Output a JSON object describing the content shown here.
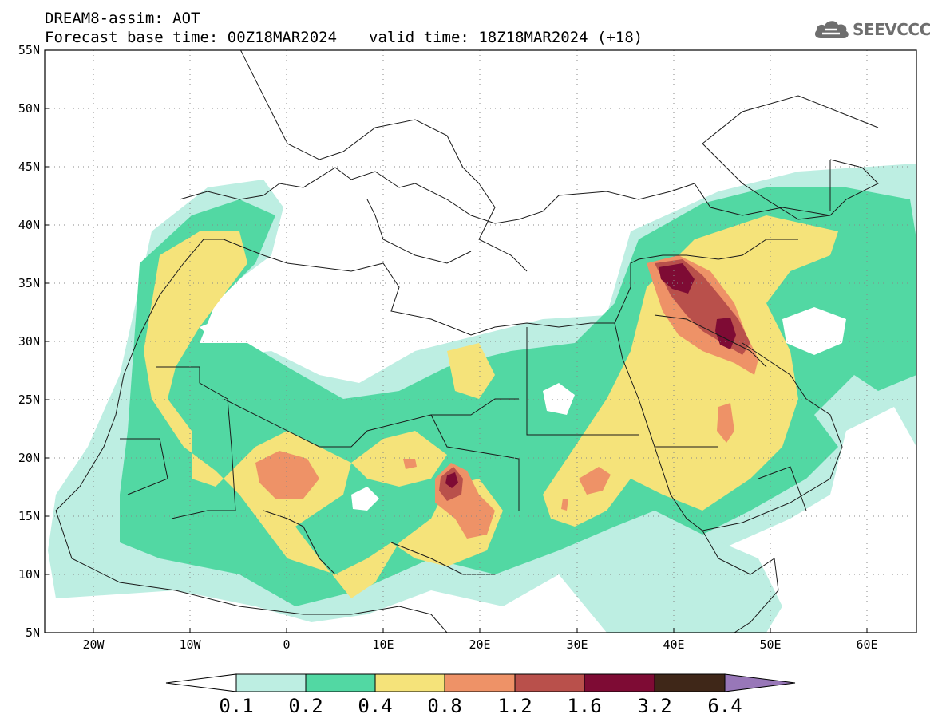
{
  "header": {
    "line1": "DREAM8-assim: AOT",
    "base_time": "Forecast base time: 00Z18MAR2024",
    "valid_time": "valid time: 18Z18MAR2024 (+18)"
  },
  "logo": {
    "text": "SEEVCCC",
    "icon": "cloud-logo-icon"
  },
  "map": {
    "lon_range": [
      -25,
      65
    ],
    "lat_range": [
      5,
      55
    ],
    "lat_ticks": [
      "55N",
      "50N",
      "45N",
      "40N",
      "35N",
      "30N",
      "25N",
      "20N",
      "15N",
      "10N",
      "5N"
    ],
    "lat_values": [
      55,
      50,
      45,
      40,
      35,
      30,
      25,
      20,
      15,
      10,
      5
    ],
    "lon_ticks": [
      "20W",
      "10W",
      "0",
      "10E",
      "20E",
      "30E",
      "40E",
      "50E",
      "60E"
    ],
    "lon_values": [
      -20,
      -10,
      0,
      10,
      20,
      30,
      40,
      50,
      60
    ],
    "grid": "dotted"
  },
  "colorbar": {
    "labels": [
      "0.1",
      "0.2",
      "0.4",
      "0.8",
      "1.2",
      "1.6",
      "3.2",
      "6.4"
    ],
    "colors": [
      "#bdeee2",
      "#52d8a3",
      "#f5e37a",
      "#ee9267",
      "#b9504b",
      "#7e0b34",
      "#3f2718",
      "#9877b8"
    ]
  }
}
